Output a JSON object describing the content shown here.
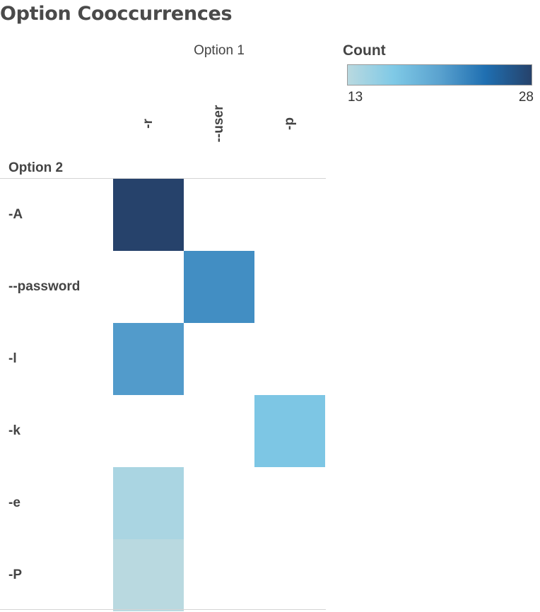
{
  "title": "Option Cooccurrences",
  "chart_data": {
    "type": "heatmap",
    "title": "Option Cooccurrences",
    "x_axis_title": "Option 1",
    "y_axis_title": "Option 2",
    "columns": [
      "-r",
      "--user",
      "-p"
    ],
    "rows": [
      "-A",
      "--password",
      "-l",
      "-k",
      "-e",
      "-P"
    ],
    "cells": [
      {
        "row": "-A",
        "col": "-r",
        "value": 28
      },
      {
        "row": "--password",
        "col": "--user",
        "value": 22
      },
      {
        "row": "-l",
        "col": "-r",
        "value": 21
      },
      {
        "row": "-k",
        "col": "-p",
        "value": 17
      },
      {
        "row": "-e",
        "col": "-r",
        "value": 14
      },
      {
        "row": "-P",
        "col": "-r",
        "value": 13
      }
    ],
    "legend": {
      "title": "Count",
      "min": 13,
      "max": 28,
      "min_label": "13",
      "max_label": "28",
      "placement": "top-right",
      "color_stops": [
        "#b9d9e0",
        "#7fc9e6",
        "#5aa2cf",
        "#1f6fb1",
        "#26426b"
      ]
    },
    "grid": false
  }
}
